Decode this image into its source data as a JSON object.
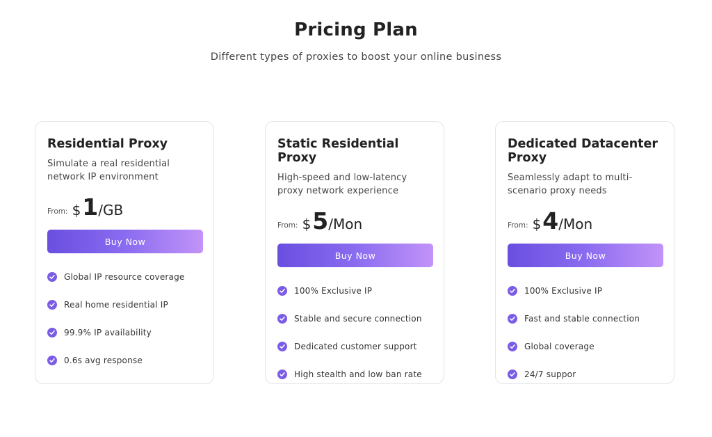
{
  "header": {
    "title": "Pricing Plan",
    "subtitle": "Different types of proxies to boost your online business"
  },
  "plans": [
    {
      "title": "Residential Proxy",
      "description": "Simulate a real residential network IP environment",
      "price_prefix": "From:",
      "currency": "$",
      "amount": "1",
      "unit": "/GB",
      "button_label": "Buy Now",
      "features": [
        "Global IP resource coverage",
        "Real home residential IP",
        "99.9% IP availability",
        "0.6s avg response"
      ]
    },
    {
      "title": "Static Residential Proxy",
      "description": "High-speed and low-latency proxy network experience",
      "price_prefix": "From:",
      "currency": "$",
      "amount": "5",
      "unit": "/Mon",
      "button_label": "Buy Now",
      "features": [
        "100% Exclusive IP",
        "Stable and secure connection",
        "Dedicated customer support",
        "High stealth and low ban rate"
      ]
    },
    {
      "title": "Dedicated Datacenter Proxy",
      "description": "Seamlessly adapt to multi-scenario proxy needs",
      "price_prefix": "From:",
      "currency": "$",
      "amount": "4",
      "unit": "/Mon",
      "button_label": "Buy Now",
      "features": [
        "100% Exclusive IP",
        "Fast and stable connection",
        "Global coverage",
        "24/7 suppor"
      ]
    }
  ],
  "colors": {
    "accent": "#7b5ce6",
    "button_gradient_start": "#6a4ee0",
    "button_gradient_end": "#c293f8"
  },
  "icons": {
    "feature": "check-circle-icon"
  }
}
